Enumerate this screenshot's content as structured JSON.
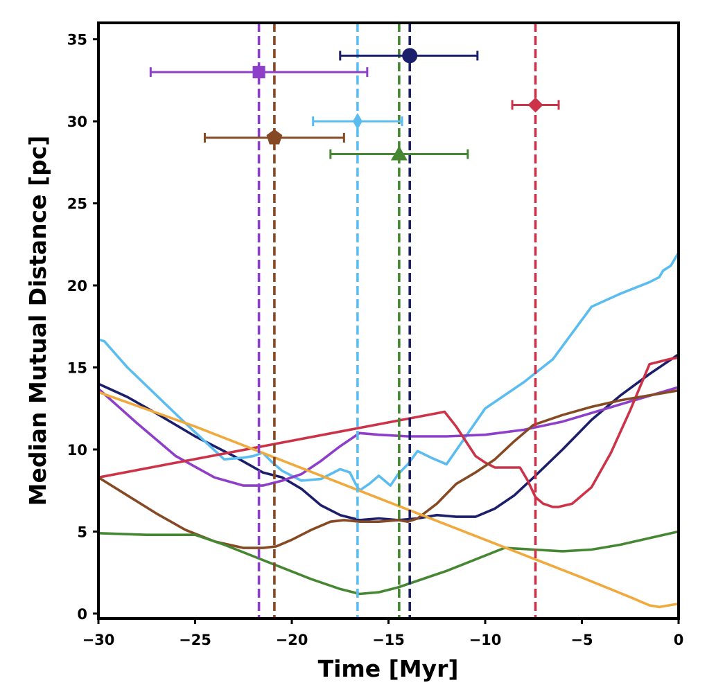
{
  "chart_data": {
    "type": "line",
    "title": "",
    "xlabel": "Time [Myr]",
    "ylabel": "Median Mutual Distance [pc]",
    "xlim": [
      -30,
      0
    ],
    "ylim": [
      -0.3,
      36
    ],
    "xticks": [
      -30,
      -25,
      -20,
      -15,
      -10,
      -5,
      0
    ],
    "xtick_labels": [
      "−30",
      "−25",
      "−20",
      "−15",
      "−10",
      "−5",
      "0"
    ],
    "yticks": [
      0,
      5,
      10,
      15,
      20,
      25,
      30,
      35
    ],
    "ytick_labels": [
      "0",
      "5",
      "10",
      "15",
      "20",
      "25",
      "30",
      "35"
    ],
    "grid": false,
    "legend": "none",
    "series": [
      {
        "color": "#1b1f6b",
        "x": [
          -30,
          -28.5,
          -27,
          -25,
          -23,
          -21.5,
          -20.5,
          -19.5,
          -18.5,
          -17.5,
          -16.5,
          -15.5,
          -14.5,
          -13.5,
          -12.5,
          -11.5,
          -10.5,
          -9.5,
          -8.5,
          -7.5,
          -6,
          -4.5,
          -3,
          -1.5,
          0
        ],
        "y": [
          14.0,
          13.2,
          12.2,
          10.8,
          9.6,
          8.6,
          8.3,
          7.6,
          6.6,
          6.0,
          5.7,
          5.8,
          5.7,
          5.8,
          6.0,
          5.9,
          5.9,
          6.4,
          7.2,
          8.3,
          10.0,
          11.8,
          13.3,
          14.6,
          15.8
        ]
      },
      {
        "color": "#5bbcf0",
        "x": [
          -30,
          -29.7,
          -28.5,
          -27,
          -25.5,
          -24.5,
          -23.5,
          -22.5,
          -22,
          -21.5,
          -21,
          -20.5,
          -19.5,
          -18.5,
          -17.5,
          -17,
          -16.7,
          -16.5,
          -16,
          -15.5,
          -14.9,
          -14.5,
          -14,
          -13.5,
          -12.8,
          -12,
          -11,
          -10,
          -9,
          -8,
          -6.5,
          -4.5,
          -3,
          -1.5,
          -1,
          -0.8,
          -0.4,
          -0.2,
          0
        ],
        "y": [
          16.7,
          16.6,
          15.0,
          13.3,
          11.6,
          10.5,
          9.4,
          9.5,
          9.6,
          9.8,
          9.2,
          8.7,
          8.1,
          8.2,
          8.8,
          8.6,
          7.9,
          7.5,
          7.9,
          8.4,
          7.8,
          8.5,
          9.1,
          9.9,
          9.5,
          9.1,
          10.8,
          12.5,
          13.3,
          14.1,
          15.5,
          18.7,
          19.5,
          20.2,
          20.5,
          20.9,
          21.2,
          21.6,
          22.0
        ]
      },
      {
        "color": "#8d3fca",
        "x": [
          -30,
          -28,
          -26,
          -24,
          -22.5,
          -21.5,
          -20.5,
          -19.5,
          -18.5,
          -17.5,
          -16.5,
          -15.5,
          -14,
          -12,
          -10,
          -8,
          -6,
          -4,
          -2,
          0
        ],
        "y": [
          13.7,
          11.6,
          9.6,
          8.3,
          7.8,
          7.8,
          8.1,
          8.5,
          9.3,
          10.2,
          11.0,
          10.9,
          10.8,
          10.8,
          10.9,
          11.2,
          11.7,
          12.4,
          13.1,
          13.8
        ]
      },
      {
        "color": "#cc3349",
        "x": [
          -30,
          -12.1,
          -11.5,
          -11,
          -10.5,
          -10,
          -9.5,
          -9,
          -8.5,
          -8.2,
          -7.8,
          -7.4,
          -7,
          -6.5,
          -6.2,
          -5.5,
          -4.5,
          -3.5,
          -2.5,
          -1.5,
          -0.5,
          0
        ],
        "y": [
          8.3,
          12.3,
          11.4,
          10.5,
          9.6,
          9.2,
          8.9,
          8.9,
          8.9,
          8.9,
          8.1,
          7.1,
          6.7,
          6.5,
          6.5,
          6.7,
          7.7,
          9.8,
          12.4,
          15.2,
          15.5,
          15.6
        ]
      },
      {
        "color": "#854a23",
        "x": [
          -30,
          -28.5,
          -27,
          -25.5,
          -24,
          -22.5,
          -21.5,
          -20.8,
          -20,
          -19,
          -18,
          -17.3,
          -16.5,
          -15.5,
          -14.5,
          -14,
          -13.5,
          -12.5,
          -11.5,
          -10.5,
          -9.5,
          -8.5,
          -7.5,
          -6,
          -4.5,
          -3,
          -1.5,
          0
        ],
        "y": [
          8.3,
          7.2,
          6.1,
          5.1,
          4.4,
          4.0,
          4.0,
          4.1,
          4.5,
          5.1,
          5.6,
          5.7,
          5.6,
          5.6,
          5.7,
          5.6,
          5.8,
          6.7,
          7.9,
          8.6,
          9.4,
          10.5,
          11.5,
          12.1,
          12.6,
          13.0,
          13.3,
          13.6
        ]
      },
      {
        "color": "#468733",
        "x": [
          -30,
          -27.5,
          -25,
          -23.5,
          -22,
          -20.5,
          -19,
          -17.5,
          -16.5,
          -15.5,
          -14.5,
          -13.5,
          -12,
          -10.5,
          -9,
          -7.5,
          -6,
          -4.5,
          -3,
          -1.5,
          0
        ],
        "y": [
          4.9,
          4.8,
          4.8,
          4.2,
          3.5,
          2.8,
          2.1,
          1.5,
          1.2,
          1.3,
          1.6,
          2.0,
          2.6,
          3.3,
          4.0,
          3.9,
          3.8,
          3.9,
          4.2,
          4.6,
          5.0
        ]
      },
      {
        "color": "#f0a93c",
        "x": [
          -30,
          -25,
          -20,
          -15,
          -10,
          -5,
          -2.5,
          -1.5,
          -1,
          -0.5,
          0
        ],
        "y": [
          13.5,
          11.4,
          9.1,
          6.8,
          4.5,
          2.2,
          1.0,
          0.5,
          0.4,
          0.5,
          0.6
        ]
      }
    ],
    "vertical_lines": [
      {
        "x": -21.7,
        "color": "#8d3fca"
      },
      {
        "x": -20.9,
        "color": "#854a23"
      },
      {
        "x": -16.6,
        "color": "#5bbcf0"
      },
      {
        "x": -14.45,
        "color": "#468733"
      },
      {
        "x": -13.9,
        "color": "#1b1f6b"
      },
      {
        "x": -7.4,
        "color": "#cc3349"
      }
    ],
    "error_points": [
      {
        "x": -21.7,
        "y": 33,
        "xmin": -27.3,
        "xmax": -16.1,
        "marker": "square",
        "color": "#8d3fca"
      },
      {
        "x": -13.9,
        "y": 34,
        "xmin": -17.5,
        "xmax": -10.4,
        "marker": "circle",
        "color": "#1b1f6b"
      },
      {
        "x": -16.6,
        "y": 30,
        "xmin": -18.9,
        "xmax": -14.3,
        "marker": "thin_diamond",
        "color": "#5bbcf0"
      },
      {
        "x": -20.9,
        "y": 29,
        "xmin": -24.5,
        "xmax": -17.3,
        "marker": "pentagon",
        "color": "#854a23"
      },
      {
        "x": -14.45,
        "y": 28,
        "xmin": -18.0,
        "xmax": -10.9,
        "marker": "triangle",
        "color": "#468733"
      },
      {
        "x": -7.4,
        "y": 31,
        "xmin": -8.6,
        "xmax": -6.2,
        "marker": "diamond",
        "color": "#cc3349"
      }
    ]
  }
}
